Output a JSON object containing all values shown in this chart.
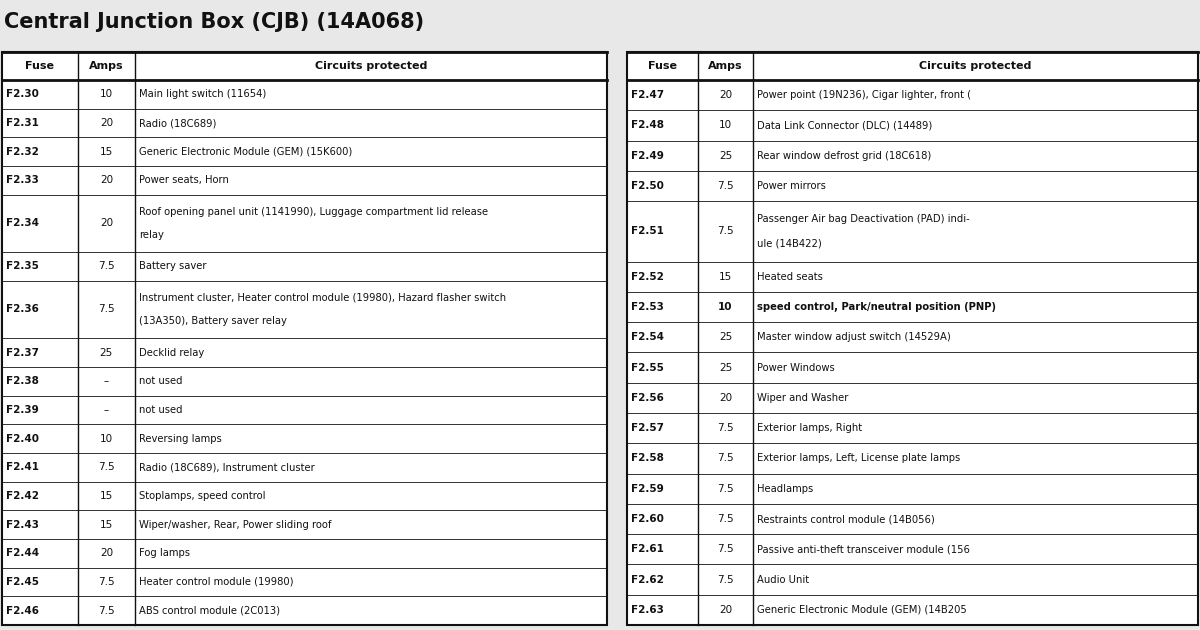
{
  "title": "Central Junction Box (CJB) (14A068)",
  "title_fontsize": 15,
  "bg_color": "#e8e8e8",
  "table_bg": "#ffffff",
  "border_color": "#111111",
  "text_color": "#111111",
  "left_table": {
    "headers": [
      "Fuse",
      "Amps",
      "Circuits protected"
    ],
    "rows": [
      [
        "F2.30",
        "10",
        "Main light switch (11654)",
        false
      ],
      [
        "F2.31",
        "20",
        "Radio (18C689)",
        false
      ],
      [
        "F2.32",
        "15",
        "Generic Electronic Module (GEM) (15K600)",
        false
      ],
      [
        "F2.33",
        "20",
        "Power seats, Horn",
        false
      ],
      [
        "F2.34",
        "20",
        "Roof opening panel unit (1141990), Luggage compartment lid release\nrelay",
        false
      ],
      [
        "F2.35",
        "7.5",
        "Battery saver",
        false
      ],
      [
        "F2.36",
        "7.5",
        "Instrument cluster, Heater control module (19980), Hazard flasher switch\n(13A350), Battery saver relay",
        false
      ],
      [
        "F2.37",
        "25",
        "Decklid relay",
        false
      ],
      [
        "F2.38",
        "–",
        "not used",
        false
      ],
      [
        "F2.39",
        "–",
        "not used",
        false
      ],
      [
        "F2.40",
        "10",
        "Reversing lamps",
        false
      ],
      [
        "F2.41",
        "7.5",
        "Radio (18C689), Instrument cluster",
        false
      ],
      [
        "F2.42",
        "15",
        "Stoplamps, speed control",
        false
      ],
      [
        "F2.43",
        "15",
        "Wiper/washer, Rear, Power sliding roof",
        false
      ],
      [
        "F2.44",
        "20",
        "Fog lamps",
        false
      ],
      [
        "F2.45",
        "7.5",
        "Heater control module (19980)",
        false
      ],
      [
        "F2.46",
        "7.5",
        "ABS control module (2C013)",
        false
      ]
    ]
  },
  "right_table": {
    "headers": [
      "Fuse",
      "Amps",
      "Circuits protected"
    ],
    "rows": [
      [
        "F2.47",
        "20",
        "Power point (19N236), Cigar lighter, front (",
        false
      ],
      [
        "F2.48",
        "10",
        "Data Link Connector (DLC) (14489)",
        false
      ],
      [
        "F2.49",
        "25",
        "Rear window defrost grid (18C618)",
        false
      ],
      [
        "F2.50",
        "7.5",
        "Power mirrors",
        false
      ],
      [
        "F2.51",
        "7.5",
        "Passenger Air bag Deactivation (PAD) indi-\nule (14B422)",
        false
      ],
      [
        "F2.52",
        "15",
        "Heated seats",
        false
      ],
      [
        "F2.53",
        "10",
        "speed control, Park/neutral position (PNP)",
        true
      ],
      [
        "F2.54",
        "25",
        "Master window adjust switch (14529A)",
        false
      ],
      [
        "F2.55",
        "25",
        "Power Windows",
        false
      ],
      [
        "F2.56",
        "20",
        "Wiper and Washer",
        false
      ],
      [
        "F2.57",
        "7.5",
        "Exterior lamps, Right",
        false
      ],
      [
        "F2.58",
        "7.5",
        "Exterior lamps, Left, License plate lamps",
        false
      ],
      [
        "F2.59",
        "7.5",
        "Headlamps",
        false
      ],
      [
        "F2.60",
        "7.5",
        "Restraints control module (14B056)",
        false
      ],
      [
        "F2.61",
        "7.5",
        "Passive anti-theft transceiver module (156",
        false
      ],
      [
        "F2.62",
        "7.5",
        "Audio Unit",
        false
      ],
      [
        "F2.63",
        "20",
        "Generic Electronic Module (GEM) (14B205",
        false
      ]
    ]
  }
}
